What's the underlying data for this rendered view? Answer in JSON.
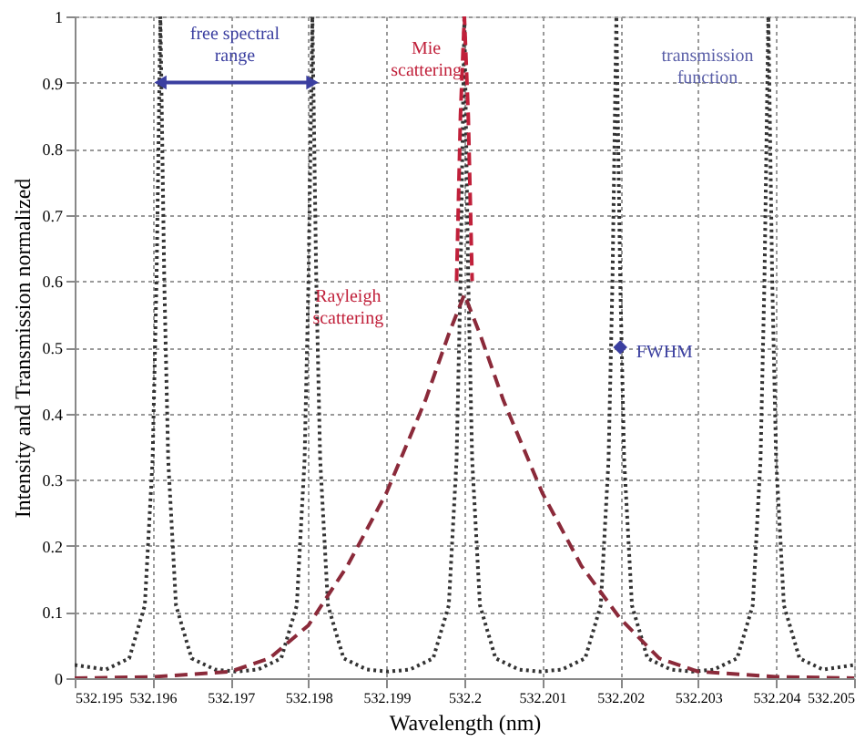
{
  "chart_data": {
    "type": "line",
    "xlabel": "Wavelength (nm)",
    "ylabel": "Intensity and Transmission normalized",
    "xlim": [
      532.195,
      532.205
    ],
    "xticks": [
      532.195,
      532.196,
      532.197,
      532.198,
      532.199,
      532.2,
      532.201,
      532.202,
      532.203,
      532.204,
      532.205
    ],
    "ylim": [
      0,
      1
    ],
    "yticks": [
      0,
      0.1,
      0.2,
      0.3,
      0.4,
      0.5,
      0.6,
      0.7,
      0.8,
      0.9,
      1
    ],
    "grid": true,
    "series": [
      {
        "color": "#333333",
        "line_style": "dotted",
        "x": [
          532.195,
          532.1954,
          532.1957,
          532.1959,
          532.196,
          532.19605,
          532.1961,
          532.19615,
          532.1962,
          532.1963,
          532.1965,
          532.1968,
          532.197075,
          532.19735,
          532.19765,
          532.19785,
          532.19795,
          532.198,
          532.19805,
          532.1981,
          532.19815,
          532.19825,
          532.19845,
          532.19875,
          532.199025,
          532.1993,
          532.1996,
          532.1998,
          532.1999,
          532.19995,
          532.2,
          532.20005,
          532.2001,
          532.2002,
          532.2004,
          532.2007,
          532.200975,
          532.20125,
          532.20155,
          532.20175,
          532.20185,
          532.2019,
          532.20195,
          532.202,
          532.20205,
          532.20215,
          532.20235,
          532.20265,
          532.202925,
          532.2032,
          532.2035,
          532.2037,
          532.2038,
          532.20385,
          532.2039,
          532.20395,
          532.204,
          532.2041,
          532.2043,
          532.2046,
          532.205
        ],
        "values": [
          0.02,
          0.013,
          0.03,
          0.11,
          0.33,
          0.6,
          1,
          0.6,
          0.33,
          0.11,
          0.03,
          0.013,
          0.01,
          0.013,
          0.03,
          0.11,
          0.33,
          0.6,
          1,
          0.6,
          0.33,
          0.11,
          0.03,
          0.013,
          0.01,
          0.013,
          0.03,
          0.11,
          0.33,
          0.6,
          1,
          0.6,
          0.33,
          0.11,
          0.03,
          0.013,
          0.01,
          0.013,
          0.03,
          0.11,
          0.33,
          0.6,
          1,
          0.6,
          0.33,
          0.11,
          0.03,
          0.013,
          0.01,
          0.013,
          0.03,
          0.11,
          0.33,
          0.6,
          1,
          0.6,
          0.33,
          0.11,
          0.03,
          0.013,
          0.02
        ]
      },
      {
        "color": "#8b2a3a",
        "line_style": "dashed",
        "x": [
          532.195,
          532.196,
          532.197,
          532.1975,
          532.198,
          532.1985,
          532.199,
          532.1995,
          532.1998,
          532.2,
          532.2002,
          532.2005,
          532.201,
          532.2015,
          532.202,
          532.2025,
          532.203,
          532.204,
          532.205
        ],
        "values": [
          0,
          0.002,
          0.01,
          0.03,
          0.08,
          0.17,
          0.28,
          0.42,
          0.52,
          0.58,
          0.52,
          0.42,
          0.28,
          0.17,
          0.09,
          0.03,
          0.01,
          0.002,
          0
        ]
      },
      {
        "color": "#c0203a",
        "line_style": "dashed",
        "x": [
          532.1999,
          532.19995,
          532.2,
          532.20005,
          532.2001
        ],
        "values": [
          0.6,
          0.85,
          1,
          0.85,
          0.6
        ]
      },
      {
        "color": "#3b3fa0",
        "line_style": "solid",
        "marker": "triangle",
        "x": [
          532.1961,
          532.19805
        ],
        "values": [
          0.9,
          0.9
        ]
      },
      {
        "type": "scatter",
        "color": "#3b3fa0",
        "marker": "diamond",
        "x": [
          532.202
        ],
        "values": [
          0.5
        ]
      }
    ],
    "annotations": [
      "free spectral\nrange",
      "Mie\nscattering",
      "Rayleigh\nscattering",
      "transmission\nfunction",
      "FWHM"
    ]
  }
}
